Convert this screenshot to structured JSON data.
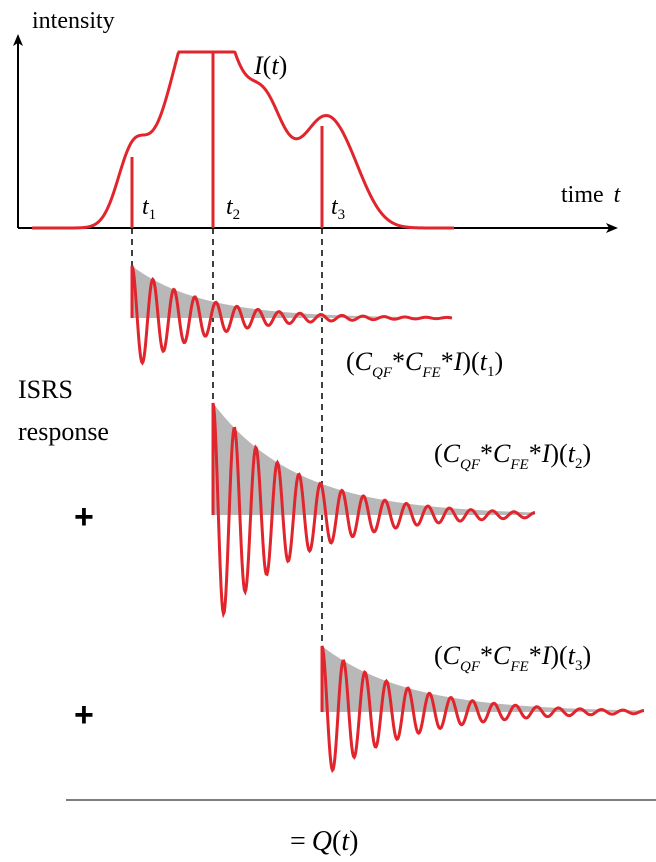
{
  "axes": {
    "y_label": "intensity",
    "x_label_word": "time",
    "x_label_var": "t"
  },
  "curve": {
    "label_var": "I",
    "label_paren_open": "(",
    "label_t": "t",
    "label_paren_close": ")"
  },
  "times": [
    {
      "var": "t",
      "sub": "1"
    },
    {
      "var": "t",
      "sub": "2"
    },
    {
      "var": "t",
      "sub": "3"
    }
  ],
  "response": {
    "label_line1": "ISRS",
    "label_line2": "response",
    "plus_sign": "+"
  },
  "conv_label": {
    "open": "(",
    "c": "C",
    "qf": "QF",
    "star": "*",
    "fe": "FE",
    "i": "I",
    "close": ")",
    "t": "t"
  },
  "result": {
    "eq": "=",
    "q": "Q",
    "open": "(",
    "t": "t",
    "close": ")"
  },
  "colors": {
    "curve": "#e1252d",
    "envelope_fill": "#b8b8b8",
    "axis": "#000000",
    "rule": "#555555"
  }
}
